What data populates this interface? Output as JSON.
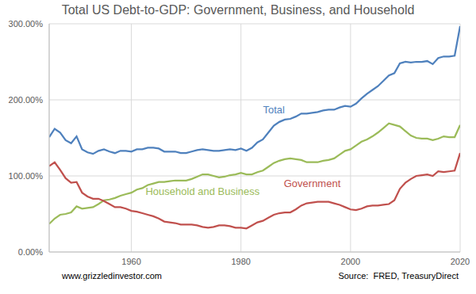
{
  "chart_data": {
    "type": "line",
    "title": "Total US Debt-to-GDP: Government, Business, and Household",
    "footnote": "www.grizzledinvestor.com",
    "source": "Source:  FRED, TreasuryDirect",
    "x": [
      1945,
      1946,
      1947,
      1948,
      1949,
      1950,
      1951,
      1952,
      1953,
      1954,
      1955,
      1956,
      1957,
      1958,
      1959,
      1960,
      1961,
      1962,
      1963,
      1964,
      1965,
      1966,
      1967,
      1968,
      1969,
      1970,
      1971,
      1972,
      1973,
      1974,
      1975,
      1976,
      1977,
      1978,
      1979,
      1980,
      1981,
      1982,
      1983,
      1984,
      1985,
      1986,
      1987,
      1988,
      1989,
      1990,
      1991,
      1992,
      1993,
      1994,
      1995,
      1996,
      1997,
      1998,
      1999,
      2000,
      2001,
      2002,
      2003,
      2004,
      2005,
      2006,
      2007,
      2008,
      2009,
      2010,
      2011,
      2012,
      2013,
      2014,
      2015,
      2016,
      2017,
      2018,
      2019,
      2020
    ],
    "series": [
      {
        "name": "Total",
        "color": "#4f81bd",
        "values": [
          151,
          162,
          157,
          147,
          143,
          152,
          135,
          131,
          129,
          133,
          135,
          132,
          130,
          133,
          133,
          132,
          135,
          135,
          137,
          137,
          136,
          132,
          132,
          132,
          130,
          130,
          132,
          134,
          135,
          134,
          133,
          133,
          134,
          135,
          134,
          136,
          133,
          137,
          144,
          148,
          157,
          166,
          171,
          174,
          175,
          178,
          182,
          182,
          183,
          184,
          186,
          187,
          187,
          190,
          192,
          191,
          195,
          202,
          208,
          213,
          218,
          225,
          232,
          235,
          248,
          250,
          249,
          250,
          250,
          251,
          247,
          255,
          257,
          257,
          258,
          297
        ]
      },
      {
        "name": "Household and Business",
        "color": "#9bbb59",
        "values": [
          37,
          44,
          49,
          50,
          52,
          60,
          57,
          58,
          59,
          63,
          68,
          69,
          71,
          74,
          76,
          78,
          82,
          84,
          88,
          90,
          92,
          92,
          93,
          94,
          94,
          94,
          96,
          99,
          102,
          102,
          100,
          98,
          99,
          101,
          102,
          104,
          102,
          102,
          105,
          107,
          112,
          117,
          120,
          122,
          123,
          122,
          121,
          118,
          118,
          118,
          120,
          121,
          123,
          128,
          133,
          135,
          140,
          145,
          148,
          152,
          157,
          163,
          169,
          167,
          165,
          159,
          153,
          150,
          149,
          149,
          147,
          149,
          152,
          151,
          151,
          167
        ]
      },
      {
        "name": "Government",
        "color": "#c0504d",
        "values": [
          113,
          118,
          108,
          97,
          91,
          92,
          78,
          73,
          70,
          70,
          67,
          63,
          59,
          59,
          57,
          54,
          53,
          51,
          49,
          47,
          44,
          40,
          39,
          38,
          36,
          36,
          36,
          35,
          33,
          32,
          33,
          35,
          35,
          34,
          32,
          32,
          31,
          35,
          39,
          41,
          45,
          49,
          51,
          52,
          52,
          56,
          61,
          64,
          65,
          66,
          66,
          66,
          64,
          62,
          59,
          56,
          55,
          57,
          60,
          61,
          61,
          62,
          63,
          68,
          83,
          91,
          96,
          100,
          101,
          102,
          100,
          106,
          105,
          106,
          107,
          130
        ]
      }
    ],
    "xlim": [
      1945,
      2020
    ],
    "xticks": [
      1960,
      1980,
      2000,
      2020
    ],
    "ylim": [
      0,
      300
    ],
    "yticks": [
      {
        "value": 0,
        "label": "0.00%"
      },
      {
        "value": 100,
        "label": "100.00%"
      },
      {
        "value": 200,
        "label": "200.00%"
      },
      {
        "value": 300,
        "label": "300.00%"
      }
    ],
    "grid": true
  }
}
